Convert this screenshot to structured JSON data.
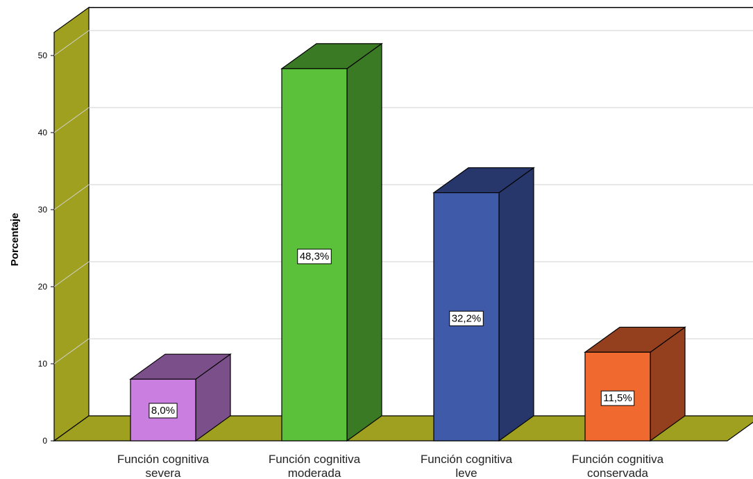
{
  "chart_data": {
    "type": "bar",
    "ylabel": "Porcentaje",
    "xlabel": "",
    "ylim": [
      0,
      53
    ],
    "yticks": [
      0,
      10,
      20,
      30,
      40,
      50
    ],
    "grid": true,
    "categories": [
      [
        "Función cognitiva",
        "severa"
      ],
      [
        "Función cognitiva",
        "moderada"
      ],
      [
        "Función cognitiva",
        "leve"
      ],
      [
        "Función cognitiva",
        "conservada"
      ]
    ],
    "values": [
      8.0,
      48.3,
      32.2,
      11.5
    ],
    "data_labels": [
      "8,0%",
      "48,3%",
      "32,2%",
      "11,5%"
    ],
    "colors": [
      {
        "front": "#c97ee0",
        "side": "#7b4f8a"
      },
      {
        "front": "#5bc13a",
        "side": "#3a7a24"
      },
      {
        "front": "#3f5aa8",
        "side": "#27376b"
      },
      {
        "front": "#f0692f",
        "side": "#943f1e"
      }
    ],
    "wall_color": "#a0a020"
  }
}
